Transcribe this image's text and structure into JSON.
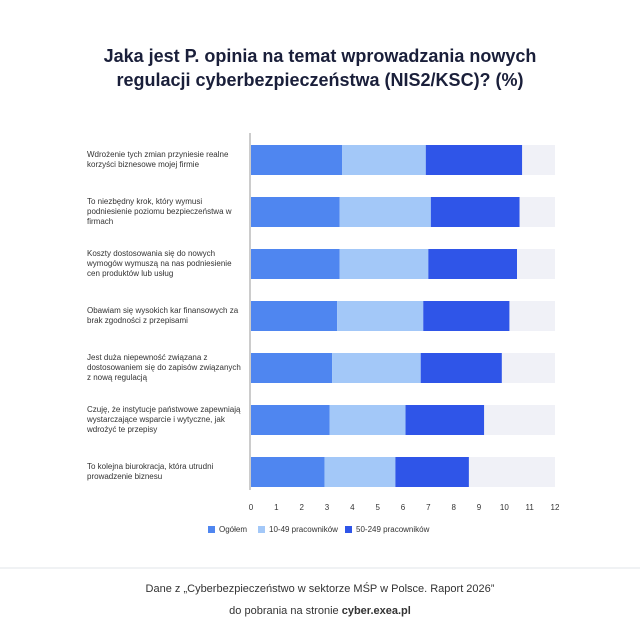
{
  "chart_data": {
    "type": "stacked-bar-horizontal",
    "title": "Jaka jest P. opinia na temat wprowadzania nowych regulacji cyberbezpieczeństwa (NIS2/KSC)? (%)",
    "categories": [
      "Wdrożenie tych zmian przyniesie realne korzyści biznesowe mojej firmie",
      "To niezbędny krok, który wymusi podniesienie poziomu bezpieczeństwa w firmach",
      "Koszty dostosowania się do nowych wymogów wymuszą na nas podniesienie cen produktów lub usług",
      "Obawiam się wysokich kar finansowych za brak zgodności z przepisami",
      "Jest duża niepewność związana z dostosowaniem się do zapisów związanych z nową regulacją",
      "Czuję, że instytucje państwowe zapewniają wystarczające wsparcie i wytyczne, jak wdrożyć te przepisy",
      "To kolejna biurokracja, która utrudni prowadzenie biznesu"
    ],
    "series": [
      {
        "name": "Ogółem",
        "color": "#4f86f0",
        "values": [
          3.6,
          3.5,
          3.5,
          3.4,
          3.2,
          3.1,
          2.9
        ]
      },
      {
        "name": "10-49 pracowników",
        "color": "#a3c8f8",
        "values": [
          3.3,
          3.6,
          3.5,
          3.4,
          3.5,
          3.0,
          2.8
        ]
      },
      {
        "name": "50-249 pracowników",
        "color": "#2f55e8",
        "values": [
          3.8,
          3.5,
          3.5,
          3.4,
          3.2,
          3.1,
          2.9
        ]
      }
    ],
    "xlim": [
      0,
      12
    ],
    "xticks": [
      0,
      1,
      2,
      3,
      4,
      5,
      6,
      7,
      8,
      9,
      10,
      11,
      12
    ],
    "legend": "bottom"
  },
  "footer": {
    "source": "Dane z „Cyberbezpieczeństwo w sektorze MŚP w Polsce. Raport 2026”",
    "download": "do pobrania na stronie",
    "link": "cyber.exea.pl"
  }
}
